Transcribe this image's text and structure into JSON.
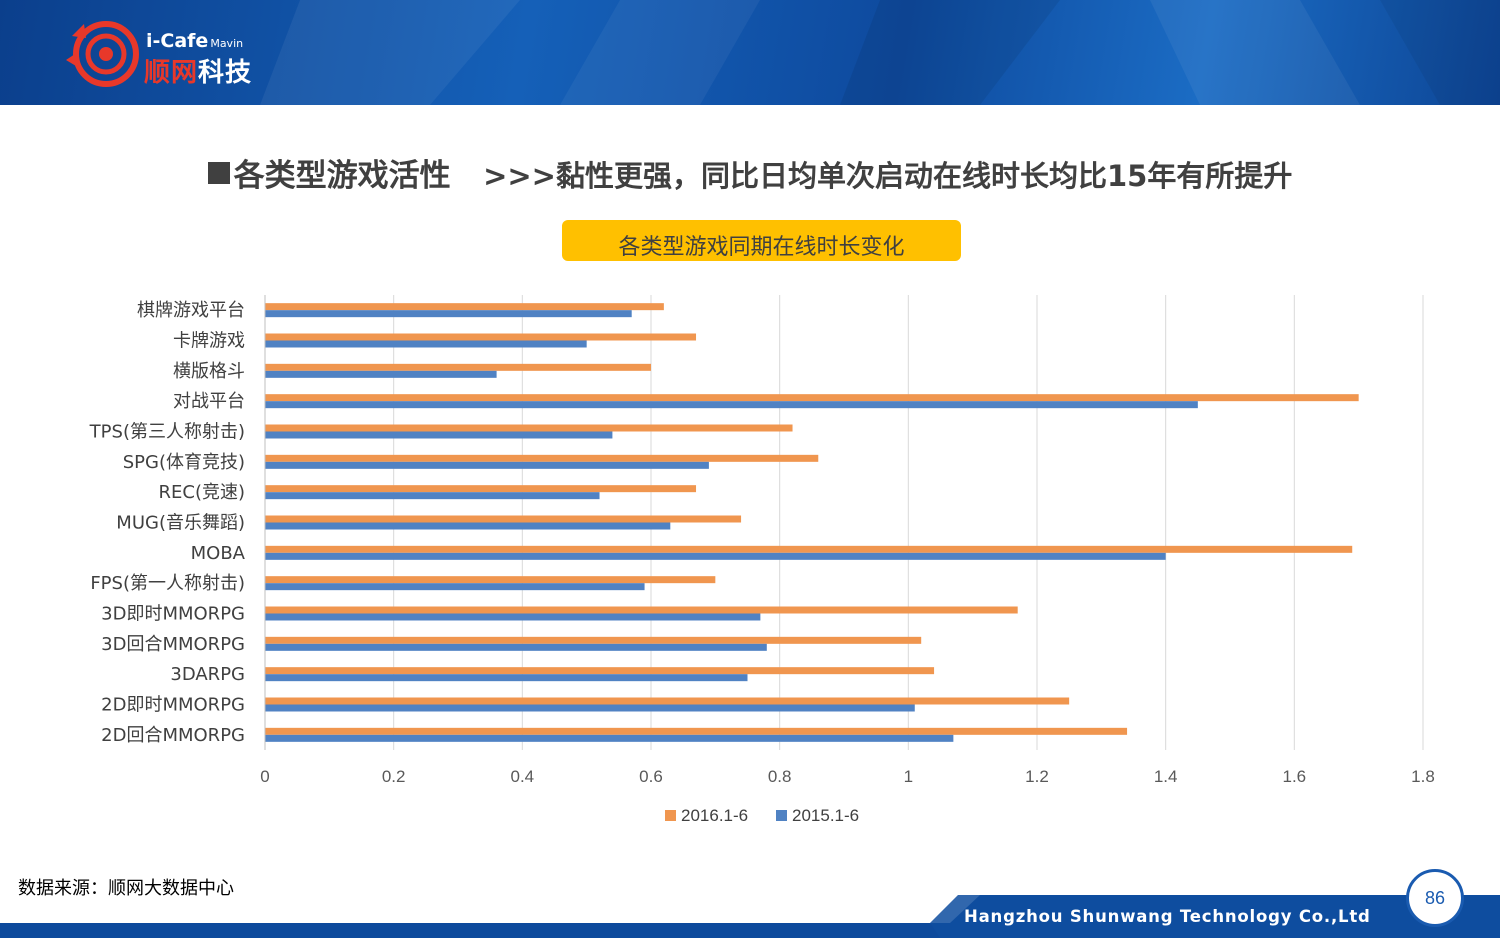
{
  "header": {
    "logo_top": "i-Cafe",
    "logo_top_small": "Mavin",
    "logo_cn_red": "顺网",
    "logo_cn_white": "科技"
  },
  "title": {
    "main": "各类型游戏活性",
    "sub": ">>>黏性更强，同比日均单次启动在线时长均比15年有所提升"
  },
  "chart_box_title": "各类型游戏同期在线时长变化",
  "chart_data": {
    "type": "bar",
    "orientation": "horizontal",
    "categories": [
      "棋牌游戏平台",
      "卡牌游戏",
      "横版格斗",
      "对战平台",
      "TPS(第三人称射击)",
      "SPG(体育竞技)",
      "REC(竞速)",
      "MUG(音乐舞蹈)",
      "MOBA",
      "FPS(第一人称射击)",
      "3D即时MMORPG",
      "3D回合MMORPG",
      "3DARPG",
      "2D即时MMORPG",
      "2D回合MMORPG"
    ],
    "series": [
      {
        "name": "2016.1-6",
        "color": "#f0964f",
        "values": [
          0.62,
          0.67,
          0.6,
          1.7,
          0.82,
          0.86,
          0.67,
          0.74,
          1.69,
          0.7,
          1.17,
          1.02,
          1.04,
          1.25,
          1.34
        ]
      },
      {
        "name": "2015.1-6",
        "color": "#5082c3",
        "values": [
          0.57,
          0.5,
          0.36,
          1.45,
          0.54,
          0.69,
          0.52,
          0.63,
          1.4,
          0.59,
          0.77,
          0.78,
          0.75,
          1.01,
          1.07
        ]
      }
    ],
    "xlim": [
      0,
      1.8
    ],
    "xticks": [
      "0",
      "0.2",
      "0.4",
      "0.6",
      "0.8",
      "1",
      "1.2",
      "1.4",
      "1.6",
      "1.8"
    ],
    "grid": true,
    "legend": "bottom"
  },
  "source": "数据来源：顺网大数据中心",
  "footer": {
    "company": "Hangzhou Shunwang Technology Co.,Ltd",
    "page_number": "86"
  }
}
